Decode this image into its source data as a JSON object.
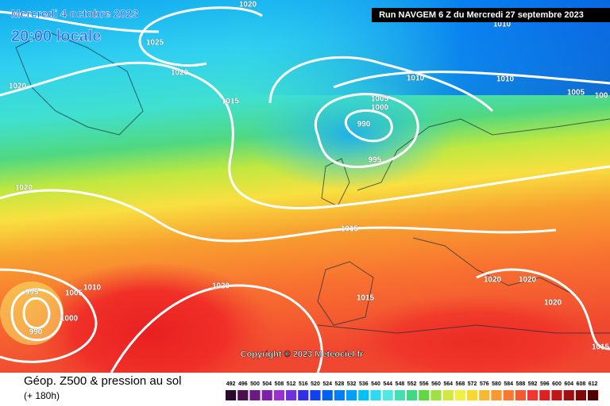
{
  "header": {
    "date": "Mercredi 4 octobre 2023",
    "time": "20:00 locale",
    "run": "Run NAVGEM 6 Z du Mercredi 27 septembre 2023"
  },
  "copyright": "Copyright © 2023 Meteociel.fr",
  "footer": {
    "title": "Géop. Z500 & pression au sol",
    "lead": "(+ 180h)"
  },
  "isobar_labels": [
    1020,
    1010,
    1025,
    1020,
    1010,
    1010,
    1005,
    100,
    1020,
    1015,
    1005,
    1000,
    990,
    995,
    1020,
    1015,
    995,
    1005,
    1010,
    1020,
    1015,
    1000,
    990,
    1020,
    1020,
    1020,
    1015
  ],
  "colorbar": {
    "ticks": [
      492,
      496,
      500,
      504,
      508,
      512,
      516,
      520,
      524,
      528,
      532,
      536,
      540,
      544,
      548,
      552,
      556,
      560,
      564,
      568,
      572,
      576,
      580,
      584,
      588,
      592,
      596,
      600,
      604,
      608,
      612
    ],
    "colors": [
      "#2a0a2a",
      "#4a1050",
      "#6a1a80",
      "#8020a8",
      "#9a30d0",
      "#7030e0",
      "#3030e8",
      "#1040f0",
      "#0060f0",
      "#0080f8",
      "#00a0f8",
      "#00c0f8",
      "#30d8f0",
      "#50e8e0",
      "#40e0b0",
      "#40d880",
      "#60d840",
      "#a0e040",
      "#d0e840",
      "#f0f040",
      "#f8d830",
      "#f8b830",
      "#f89830",
      "#f87830",
      "#f85830",
      "#f03830",
      "#e02020",
      "#c01818",
      "#a01010",
      "#800808",
      "#500000"
    ]
  }
}
